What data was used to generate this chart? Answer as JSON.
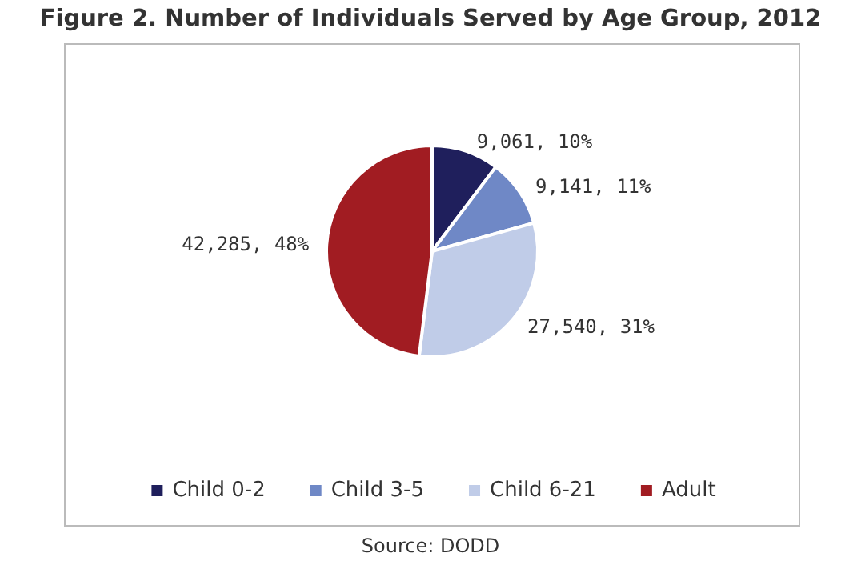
{
  "chart_data": {
    "type": "pie",
    "title": "Figure 2. Number of Individuals Served by Age Group, 2012",
    "categories": [
      "Child 0-2",
      "Child 3-5",
      "Child 6-21",
      "Adult"
    ],
    "values": [
      9061,
      9141,
      27540,
      42285
    ],
    "colors": [
      "#1f1f5c",
      "#6f88c6",
      "#c0cce8",
      "#a11c22"
    ],
    "value_labels": [
      "9,061, 10%",
      "9,141, 11%",
      "27,540, 31%",
      "42,285, 48%"
    ],
    "legend": "bottom",
    "annotations": [
      "Source: DODD"
    ]
  }
}
